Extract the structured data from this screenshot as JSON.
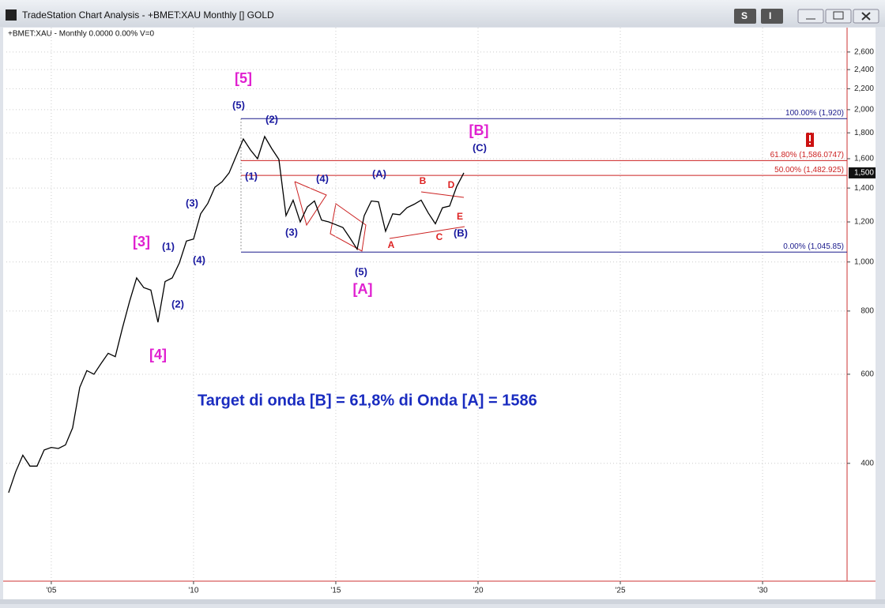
{
  "window": {
    "title": "TradeStation Chart Analysis - +BMET:XAU Monthly [] GOLD",
    "buttons": [
      "S",
      "I"
    ]
  },
  "chart_data": {
    "type": "line",
    "subtitle": "+BMET:XAU - Monthly  0.0000  0.00%  V=0",
    "annotation": "Target di onda [B] = 61,8% di Onda [A] = 1586",
    "log_scale": true,
    "grid": true,
    "xlim": [
      2003.42,
      2032.97
    ],
    "ylim": [
      234,
      2905
    ],
    "xticks": [
      {
        "value": 2005,
        "label": "'05"
      },
      {
        "value": 2010,
        "label": "'10"
      },
      {
        "value": 2015,
        "label": "'15"
      },
      {
        "value": 2020,
        "label": "'20"
      },
      {
        "value": 2025,
        "label": "'25"
      },
      {
        "value": 2030,
        "label": "'30"
      }
    ],
    "yticks": [
      400,
      600,
      800,
      {
        "value": 1000,
        "label": "1,000"
      },
      {
        "value": 1200,
        "label": "1,200"
      },
      {
        "value": 1400,
        "label": "1,400"
      },
      {
        "value": 1600,
        "label": "1,600"
      },
      {
        "value": 1800,
        "label": "1,800"
      },
      {
        "value": 2000,
        "label": "2,000"
      },
      {
        "value": 2200,
        "label": "2,200"
      },
      {
        "value": 2400,
        "label": "2,400"
      },
      {
        "value": 2600,
        "label": "2,600"
      }
    ],
    "series": [
      {
        "name": "+BMET:XAU",
        "color": "#000000",
        "x": [
          2003.5,
          2003.75,
          2004,
          2004.25,
          2004.5,
          2004.75,
          2005,
          2005.25,
          2005.5,
          2005.75,
          2006,
          2006.25,
          2006.5,
          2006.75,
          2007,
          2007.25,
          2007.5,
          2007.75,
          2008,
          2008.25,
          2008.5,
          2008.75,
          2009,
          2009.25,
          2009.5,
          2009.75,
          2010,
          2010.25,
          2010.5,
          2010.75,
          2011,
          2011.25,
          2011.5,
          2011.75,
          2012,
          2012.25,
          2012.5,
          2012.75,
          2013,
          2013.25,
          2013.5,
          2013.75,
          2014,
          2014.25,
          2014.5,
          2014.75,
          2015,
          2015.25,
          2015.5,
          2015.75,
          2016,
          2016.25,
          2016.5,
          2016.75,
          2017,
          2017.25,
          2017.5,
          2017.75,
          2018,
          2018.25,
          2018.5,
          2018.75,
          2019,
          2019.25,
          2019.5
        ],
        "values": [
          350,
          385,
          415,
          395,
          395,
          425,
          430,
          428,
          435,
          470,
          565,
          610,
          600,
          630,
          660,
          650,
          740,
          835,
          930,
          890,
          880,
          760,
          915,
          930,
          995,
          1100,
          1110,
          1245,
          1305,
          1405,
          1440,
          1500,
          1620,
          1750,
          1665,
          1600,
          1770,
          1675,
          1595,
          1235,
          1325,
          1200,
          1285,
          1320,
          1210,
          1200,
          1185,
          1170,
          1115,
          1060,
          1235,
          1320,
          1315,
          1150,
          1245,
          1240,
          1280,
          1300,
          1325,
          1250,
          1190,
          1280,
          1290,
          1410,
          1500
        ]
      }
    ],
    "last_price": {
      "value": 1500,
      "label": "1,500"
    },
    "levels": [
      {
        "value": 1920,
        "label": "100.00% (1,920)",
        "color": "#1a1a8c"
      },
      {
        "value": 1586.0747,
        "label": "61.80% (1,586.0747)",
        "color": "#cc2222"
      },
      {
        "value": 1482.925,
        "label": "50.00% (1,482.925)",
        "color": "#cc2222"
      },
      {
        "value": 1045.85,
        "label": "0.00% (1,045.85)",
        "color": "#1a1a8c"
      }
    ],
    "wave_labels": [
      {
        "text": "[5]",
        "color": "#e020d0"
      },
      {
        "text": "(5)",
        "color": "#1a1aa0"
      },
      {
        "text": "(2)",
        "color": "#1a1aa0"
      },
      {
        "text": "(1)",
        "color": "#1a1aa0"
      },
      {
        "text": "(3)",
        "color": "#1a1aa0"
      },
      {
        "text": "(4)",
        "color": "#1a1aa0"
      },
      {
        "text": "(3)",
        "color": "#1a1aa0"
      },
      {
        "text": "(A)",
        "color": "#1a1aa0"
      },
      {
        "text": "(5)",
        "color": "#1a1aa0"
      },
      {
        "text": "[A]",
        "color": "#e020d0"
      },
      {
        "text": "[3]",
        "color": "#e020d0"
      },
      {
        "text": "(1)",
        "color": "#1a1aa0"
      },
      {
        "text": "(4)",
        "color": "#1a1aa0"
      },
      {
        "text": "(2)",
        "color": "#1a1aa0"
      },
      {
        "text": "[4]",
        "color": "#e020d0"
      },
      {
        "text": "[B]",
        "color": "#e020d0"
      },
      {
        "text": "(C)",
        "color": "#1a1aa0"
      },
      {
        "text": "B",
        "color": "#dd2222"
      },
      {
        "text": "D",
        "color": "#dd2222"
      },
      {
        "text": "E",
        "color": "#dd2222"
      },
      {
        "text": "C",
        "color": "#dd2222"
      },
      {
        "text": "A",
        "color": "#dd2222"
      },
      {
        "text": "(B)",
        "color": "#1a1aa0"
      }
    ]
  }
}
